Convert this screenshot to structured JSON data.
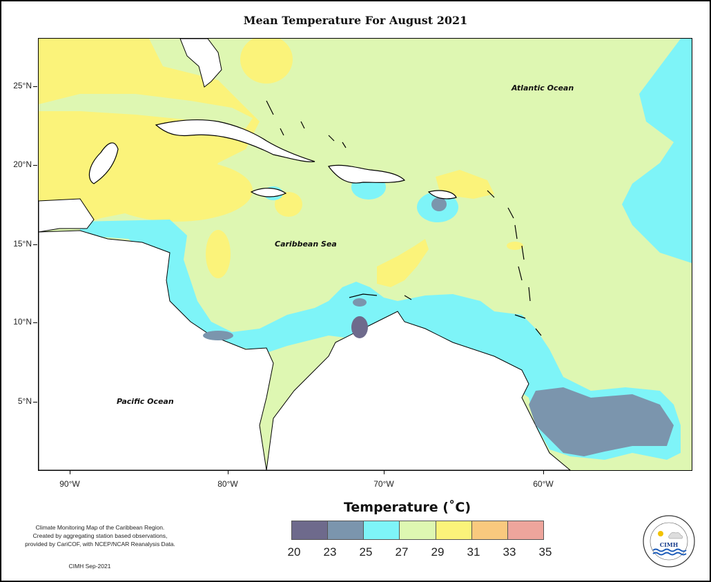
{
  "title": "Mean Temperature For August 2021",
  "map": {
    "labels": {
      "atlantic": "Atlantic Ocean",
      "caribbean": "Caribbean Sea",
      "pacific": "Pacific Ocean"
    },
    "lat_ticks": [
      "25°N",
      "20°N",
      "15°N",
      "10°N",
      "5°N"
    ],
    "lon_ticks": [
      "90°W",
      "80°W",
      "70°W",
      "60°W"
    ]
  },
  "legend": {
    "title": "Temperature (˚C)",
    "breaks": [
      "20",
      "23",
      "25",
      "27",
      "29",
      "31",
      "33",
      "35"
    ],
    "colors": [
      "#6e6a8c",
      "#7b95ad",
      "#7ef4f8",
      "#def7b2",
      "#fbf37a",
      "#f9c97e",
      "#eea59c"
    ]
  },
  "credit": {
    "line1": "Climate Monitoring Map of the Caribbean Region.",
    "line2": "Created by aggregating station based observations,",
    "line3": "provided by CariCOF, with NCEP/NCAR Reanalysis Data.",
    "date": "CIMH Sep-2021"
  },
  "logo": {
    "text": "CIMH"
  }
}
